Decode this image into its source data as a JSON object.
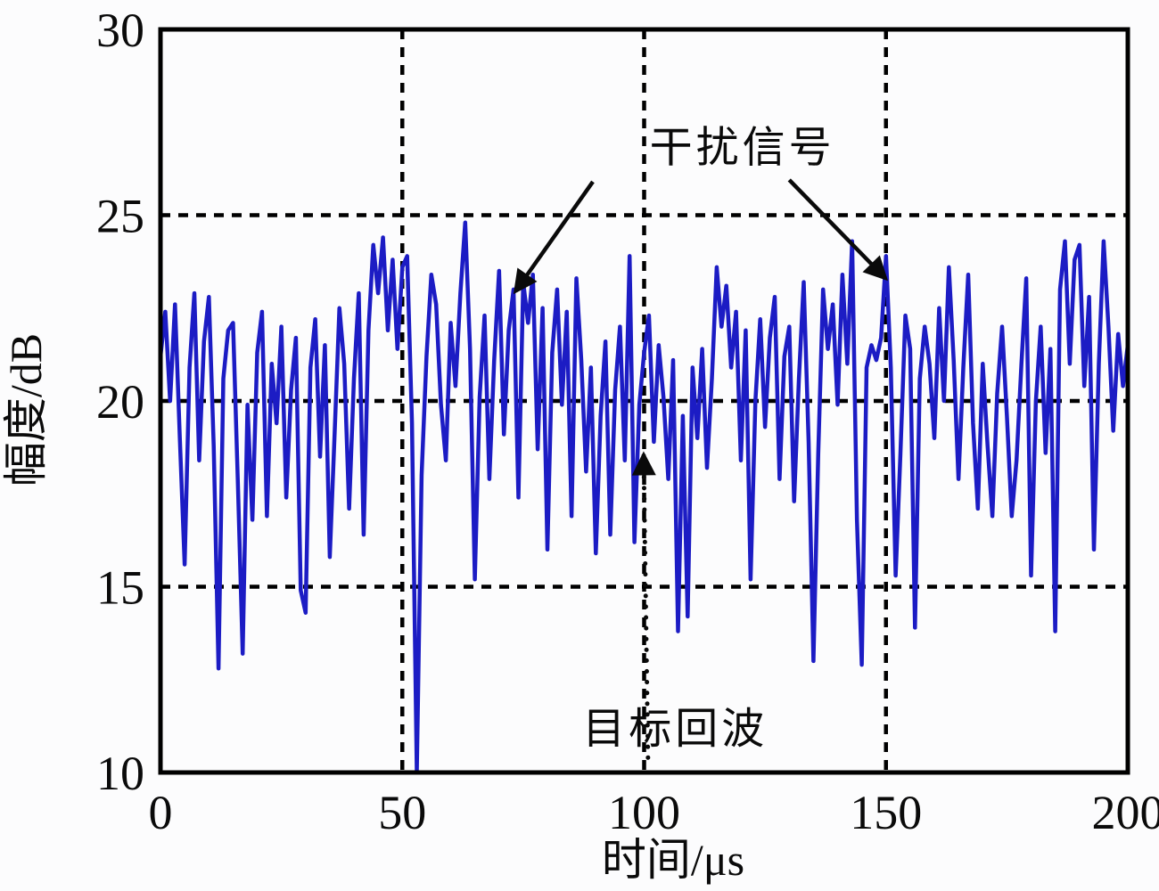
{
  "figure": {
    "background": "#fcfcfd",
    "text_color": "#0a0a0a"
  },
  "chart_data": {
    "type": "line",
    "title": "",
    "xlabel": "时间/μs",
    "ylabel": "幅度/dB",
    "xlim": [
      0,
      200
    ],
    "ylim": [
      10,
      30
    ],
    "x_ticks": [
      0,
      50,
      100,
      150,
      200
    ],
    "y_ticks": [
      10,
      15,
      20,
      25,
      30
    ],
    "grid": {
      "style": "dashed",
      "color": "#000000",
      "x_lines": [
        50,
        100,
        150
      ],
      "y_lines": [
        15,
        20,
        25
      ]
    },
    "axis_color": "#000000",
    "legend": "none",
    "series": [
      {
        "name": "received-signal",
        "color": "#1c1cc4",
        "x_start": 0,
        "x_step": 1,
        "values": [
          21.2,
          22.4,
          20.0,
          22.6,
          19.0,
          15.6,
          20.9,
          22.9,
          18.4,
          21.6,
          22.8,
          18.8,
          12.8,
          20.6,
          21.9,
          22.1,
          17.8,
          13.2,
          19.9,
          16.8,
          21.3,
          22.4,
          16.9,
          21.0,
          19.4,
          22.0,
          17.4,
          20.3,
          21.7,
          14.9,
          14.3,
          20.9,
          22.2,
          18.5,
          21.5,
          15.8,
          19.1,
          22.5,
          21.0,
          17.1,
          20.6,
          22.9,
          16.4,
          21.9,
          24.2,
          22.9,
          24.4,
          21.9,
          23.8,
          21.4,
          23.6,
          23.9,
          19.4,
          10.0,
          18.0,
          21.2,
          23.4,
          22.6,
          19.9,
          18.4,
          22.1,
          20.4,
          22.9,
          24.8,
          21.4,
          15.2,
          20.1,
          22.3,
          17.9,
          21.1,
          23.5,
          19.1,
          21.9,
          23.0,
          17.4,
          23.2,
          22.1,
          23.4,
          18.7,
          22.5,
          16.0,
          21.3,
          23.0,
          19.9,
          22.4,
          16.9,
          23.3,
          21.1,
          18.1,
          20.9,
          15.9,
          19.6,
          21.6,
          16.4,
          20.3,
          22.0,
          18.4,
          23.9,
          16.2,
          19.9,
          21.3,
          22.3,
          18.9,
          21.5,
          20.1,
          17.9,
          21.1,
          13.8,
          19.6,
          14.2,
          20.9,
          19.0,
          21.4,
          18.2,
          20.6,
          23.6,
          22.0,
          23.1,
          20.9,
          22.4,
          18.4,
          21.9,
          15.2,
          20.0,
          22.2,
          19.3,
          21.7,
          22.8,
          17.9,
          21.2,
          22.0,
          17.3,
          20.6,
          23.2,
          18.9,
          13.0,
          18.6,
          23.0,
          21.4,
          22.6,
          19.9,
          23.4,
          21.0,
          24.3,
          16.8,
          12.9,
          20.9,
          21.5,
          21.1,
          21.7,
          23.9,
          20.9,
          15.3,
          18.6,
          22.3,
          21.4,
          13.9,
          20.6,
          22.0,
          21.0,
          19.0,
          22.5,
          20.0,
          23.6,
          21.1,
          17.9,
          20.9,
          23.4,
          19.4,
          17.1,
          21.0,
          18.8,
          16.9,
          20.2,
          22.0,
          19.6,
          16.9,
          18.4,
          21.0,
          23.3,
          15.3,
          20.0,
          22.0,
          18.6,
          21.4,
          13.8,
          23.0,
          24.3,
          21.0,
          23.8,
          24.2,
          20.4,
          22.8,
          16.0,
          21.0,
          24.3,
          22.0,
          19.2,
          21.8,
          20.4,
          21.5
        ]
      }
    ],
    "annotations": [
      {
        "type": "text",
        "id": "interference-label",
        "text": "干扰信号",
        "x": 120.3,
        "y": 26.85
      },
      {
        "type": "arrow",
        "id": "interference-arrow-left",
        "style": "solid",
        "from": [
          89.4,
          25.9
        ],
        "to": [
          73.4,
          22.95
        ]
      },
      {
        "type": "arrow",
        "id": "interference-arrow-right",
        "style": "solid",
        "from": [
          130.0,
          25.95
        ],
        "to": [
          149.9,
          23.3
        ]
      },
      {
        "type": "text",
        "id": "target-echo-label",
        "text": "目标回波",
        "x": 106.4,
        "y": 11.2
      },
      {
        "type": "arrow",
        "id": "target-echo-arrow",
        "style": "dotted",
        "from": [
          100.8,
          10.4
        ],
        "to": [
          99.9,
          18.55
        ]
      }
    ]
  }
}
